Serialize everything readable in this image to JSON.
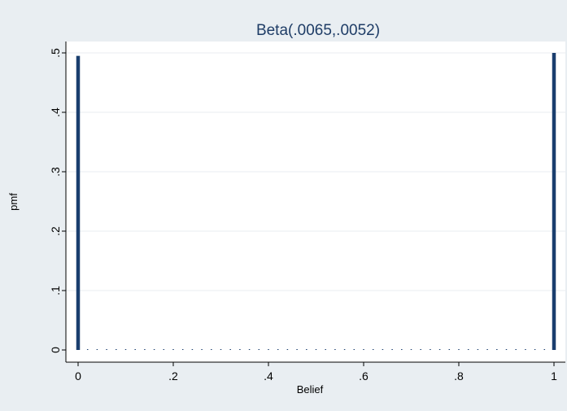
{
  "chart_data": {
    "type": "bar",
    "title": "Beta(.0065,.0052)",
    "xlabel": "Belief",
    "ylabel": "pmf",
    "xlim": [
      0,
      1
    ],
    "ylim": [
      0,
      0.5
    ],
    "x_ticks": [
      {
        "value": 0,
        "label": "0"
      },
      {
        "value": 0.2,
        "label": ".2"
      },
      {
        "value": 0.4,
        "label": ".4"
      },
      {
        "value": 0.6,
        "label": ".6"
      },
      {
        "value": 0.8,
        "label": ".8"
      },
      {
        "value": 1,
        "label": "1"
      }
    ],
    "y_ticks": [
      {
        "value": 0,
        "label": "0"
      },
      {
        "value": 0.1,
        "label": ".1"
      },
      {
        "value": 0.2,
        "label": ".2"
      },
      {
        "value": 0.3,
        "label": ".3"
      },
      {
        "value": 0.4,
        "label": ".4"
      },
      {
        "value": 0.5,
        "label": ".5"
      }
    ],
    "grid": true,
    "series": [
      {
        "x": [
          0,
          0.02,
          0.04,
          0.06,
          0.08,
          0.1,
          0.12,
          0.14,
          0.16,
          0.18,
          0.2,
          0.22,
          0.24,
          0.26,
          0.28,
          0.3,
          0.32,
          0.34,
          0.36,
          0.38,
          0.4,
          0.42,
          0.44,
          0.46,
          0.48,
          0.5,
          0.52,
          0.54,
          0.56,
          0.58,
          0.6,
          0.62,
          0.64,
          0.66,
          0.68,
          0.7,
          0.72,
          0.74,
          0.76,
          0.78,
          0.8,
          0.82,
          0.84,
          0.86,
          0.88,
          0.9,
          0.92,
          0.94,
          0.96,
          0.98,
          1
        ],
        "values": [
          0.495,
          0.0003,
          0.0002,
          0.0002,
          0.0002,
          0.0002,
          0.0002,
          0.0002,
          0.0002,
          0.0002,
          0.0002,
          0.0002,
          0.0002,
          0.0002,
          0.0002,
          0.0002,
          0.0002,
          0.0002,
          0.0002,
          0.0002,
          0.0002,
          0.0002,
          0.0002,
          0.0002,
          0.0002,
          0.0002,
          0.0002,
          0.0002,
          0.0002,
          0.0002,
          0.0002,
          0.0002,
          0.0002,
          0.0002,
          0.0002,
          0.0002,
          0.0002,
          0.0002,
          0.0002,
          0.0002,
          0.0002,
          0.0002,
          0.0002,
          0.0002,
          0.0002,
          0.0002,
          0.0002,
          0.0002,
          0.0002,
          0.0003,
          0.5
        ]
      }
    ]
  },
  "colors": {
    "background": "#e9eef2",
    "plot_background": "#ffffff",
    "bar": "#1a3e6e",
    "grid": "#e9eef2",
    "title": "#1e3c66"
  }
}
